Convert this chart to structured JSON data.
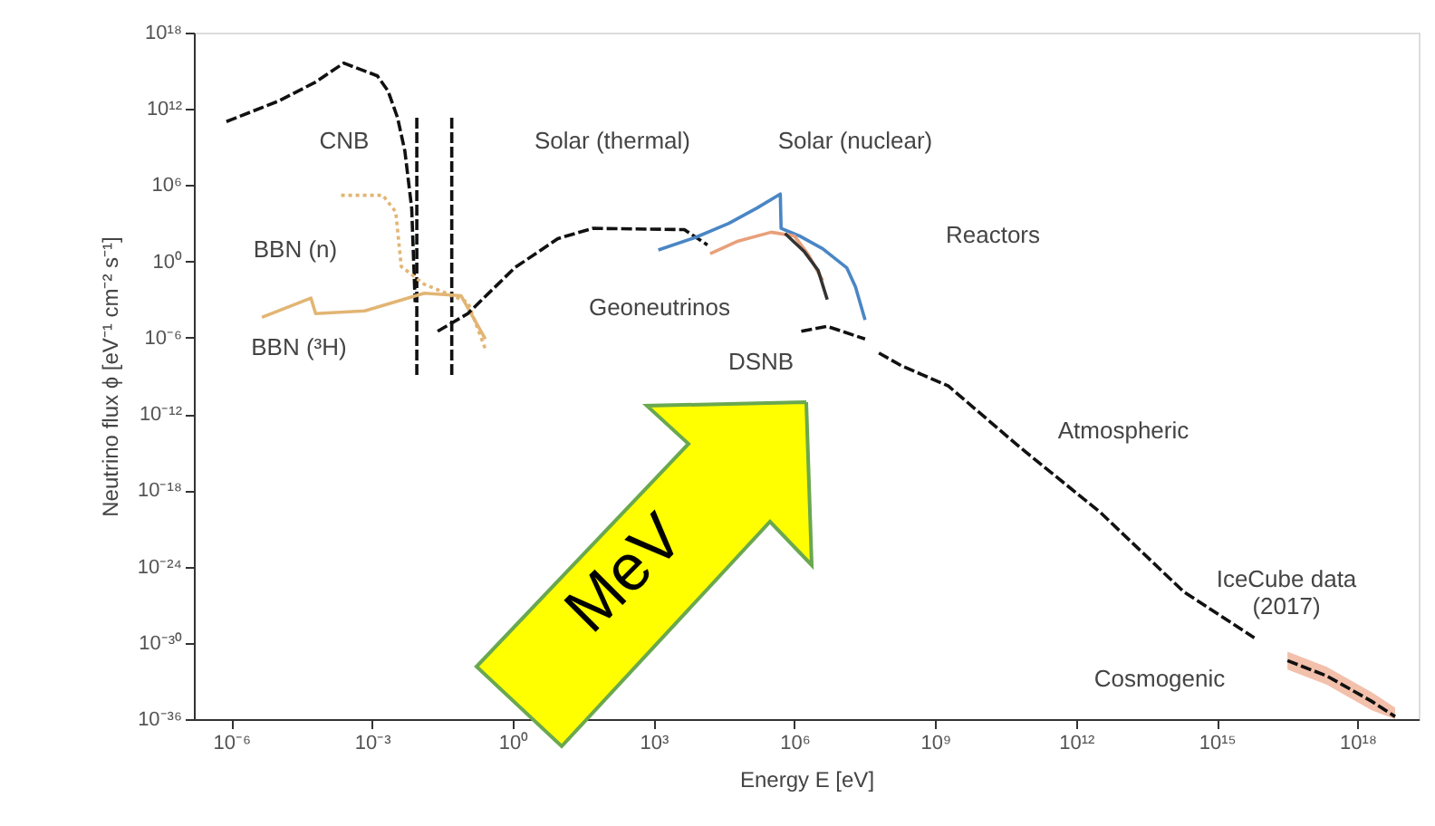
{
  "chart_data": {
    "type": "line",
    "xlabel": "Energy E [eV]",
    "ylabel": "Neutrino flux ϕ [eV⁻¹ cm⁻² s⁻¹]",
    "log": "xy",
    "grid": false,
    "legend": false,
    "xlim": [
      1.6e-07,
      2e+19
    ],
    "ylim": [
      1e-36,
      1e+18
    ],
    "xticks": [
      {
        "value": 1e-06,
        "label": "10⁻⁶"
      },
      {
        "value": 0.001,
        "label": "10⁻³"
      },
      {
        "value": 1,
        "label": "10⁰"
      },
      {
        "value": 1000.0,
        "label": "10³"
      },
      {
        "value": 1000000.0,
        "label": "10⁶"
      },
      {
        "value": 1000000000.0,
        "label": "10⁹"
      },
      {
        "value": 1000000000000.0,
        "label": "10¹²"
      },
      {
        "value": 1000000000000000.0,
        "label": "10¹⁵"
      },
      {
        "value": 1e+18,
        "label": "10¹⁸"
      }
    ],
    "yticks": [
      {
        "value": 1e-36,
        "label": "10⁻³⁶"
      },
      {
        "value": 1e-30,
        "label": "10⁻³⁰"
      },
      {
        "value": 1e-24,
        "label": "10⁻²⁴"
      },
      {
        "value": 1e-18,
        "label": "10⁻¹⁸"
      },
      {
        "value": 1e-12,
        "label": "10⁻¹²"
      },
      {
        "value": 1e-06,
        "label": "10⁻⁶"
      },
      {
        "value": 1,
        "label": "10⁰"
      },
      {
        "value": 1000000.0,
        "label": "10⁶"
      },
      {
        "value": 1000000000000.0,
        "label": "10¹²"
      },
      {
        "value": 1e+18,
        "label": "10¹⁸"
      }
    ],
    "series": [
      {
        "color": "#111111",
        "line_style": "dashed",
        "x": [
          7.9e-07,
          1e-05,
          6.3e-05,
          0.00025,
          0.0013,
          0.0022,
          0.0035,
          0.005,
          0.007,
          0.0083
        ],
        "values": [
          100000000000.0,
          4000000000000.0,
          130000000000000.0,
          4000000000000000.0,
          400000000000000.0,
          25000000000000.0,
          200000000000.0,
          500000000.0,
          16000.0,
          0.00063
        ]
      },
      {
        "color": "#111111",
        "line_style": "dashed",
        "x": [
          0.009,
          0.009
        ],
        "values": [
          200000000000.0,
          8e-10
        ]
      },
      {
        "color": "#111111",
        "line_style": "dashed",
        "x": [
          0.05,
          0.05
        ],
        "values": [
          200000000000.0,
          8e-10
        ]
      },
      {
        "color": "#e2b574",
        "line_style": "dotted",
        "x": [
          0.00022,
          0.0017,
          0.0032,
          0.0042,
          0.013,
          0.11,
          0.26
        ],
        "values": [
          160000.0,
          160000.0,
          7900.0,
          0.4,
          0.016,
          0.00063,
          1.3e-07
        ]
      },
      {
        "color": "#e2b574",
        "line_style": "solid",
        "x": [
          4.5e-06,
          5e-05,
          6.3e-05,
          0.0007,
          0.013,
          0.079,
          0.26
        ],
        "values": [
          4e-05,
          0.0013,
          7.9e-05,
          0.00013,
          0.0032,
          0.002,
          7.9e-07
        ]
      },
      {
        "color": "#111111",
        "line_style": "dashed",
        "x": [
          0.025,
          0.11,
          1.1,
          9.1,
          50,
          4500,
          14000.0
        ],
        "values": [
          3.2e-06,
          7.9e-05,
          0.32,
          63,
          400,
          320,
          20
        ]
      },
      {
        "color": "#4a86c5",
        "line_style": "solid",
        "x": [
          1260,
          7900,
          40000.0,
          160000.0,
          500000.0,
          520000.0,
          1300000.0,
          4000000.0,
          13000000.0,
          20000000.0,
          32000000.0
        ],
        "values": [
          7.9,
          79,
          1000,
          16000.0,
          200000.0,
          400,
          100,
          10,
          0.32,
          0.01,
          2.5e-05
        ]
      },
      {
        "color": "#e8a07a",
        "line_style": "solid",
        "x": [
          16000.0,
          63000.0,
          320000.0,
          1000000.0,
          2000000.0,
          4000000.0
        ],
        "values": [
          4,
          40,
          200,
          100,
          3.2,
          0.032
        ]
      },
      {
        "color": "#333333",
        "line_style": "solid",
        "x": [
          630000.0,
          1600000.0,
          3200000.0,
          5000000.0
        ],
        "values": [
          160,
          6.3,
          0.2,
          0.001
        ]
      },
      {
        "color": "#111111",
        "line_style": "dashed",
        "x": [
          1400000.0,
          5000000.0,
          32000000.0
        ],
        "values": [
          3.2e-06,
          7.9e-06,
          7.9e-07
        ]
      },
      {
        "color": "#111111",
        "line_style": "dashed",
        "x": [
          63000000.0,
          190000000.0,
          1900000000.0,
          63000000000.0,
          3200000000000.0,
          200000000000000.0,
          6300000000000000.0
        ],
        "values": [
          6.3e-08,
          6.3e-09,
          1.6e-10,
          2.5e-15,
          2e-20,
          1e-26,
          2.5e-30
        ]
      },
      {
        "color": "#111111",
        "line_style": "dashed",
        "x": [
          3.2e+16,
          2.2e+17,
          2e+18,
          6.3e+18
        ],
        "values": [
          4e-32,
          2.5e-33,
          2.5e-35,
          1.6e-36
        ],
        "lower": [
          8e-33,
          5e-34,
          5e-36,
          1e-36
        ],
        "upper": [
          2e-31,
          1.3e-32,
          1.3e-34,
          8e-36
        ]
      }
    ],
    "annotations": [
      "CNB",
      "Solar (thermal)",
      "Solar (nuclear)",
      "Reactors",
      "Geoneutrinos",
      "DSNB",
      "BBN (n)",
      "BBN (³H)",
      "Atmospheric",
      "IceCube data\n(2017)",
      "Cosmogenic",
      "MeV"
    ]
  }
}
